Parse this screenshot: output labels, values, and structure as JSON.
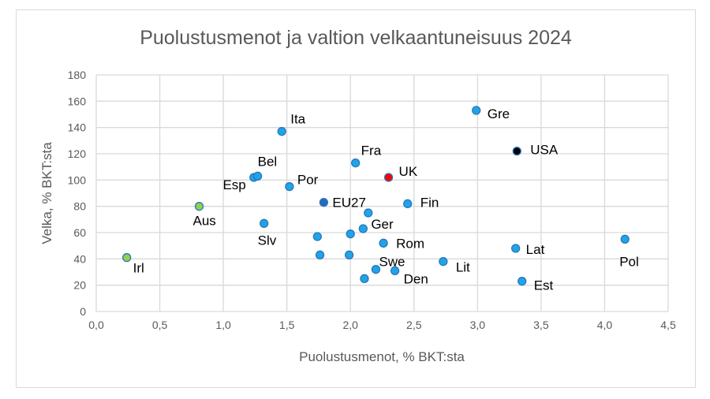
{
  "chart_data": {
    "type": "scatter",
    "title": "Puolustusmenot  ja valtion velkaantuneisuus  2024",
    "xlabel": "Puolustusmenot, % BKT:sta",
    "ylabel": "Velka, % BKT:sta",
    "xlim": [
      0,
      4.5
    ],
    "ylim": [
      0,
      180
    ],
    "xticks": [
      "0,0",
      "0,5",
      "1,0",
      "1,5",
      "2,0",
      "2,5",
      "3,0",
      "3,5",
      "4,0",
      "4,5"
    ],
    "xtick_values": [
      0,
      0.5,
      1,
      1.5,
      2,
      2.5,
      3,
      3.5,
      4,
      4.5
    ],
    "yticks": [
      "0",
      "20",
      "40",
      "60",
      "80",
      "100",
      "120",
      "140",
      "160",
      "180"
    ],
    "ytick_values": [
      0,
      20,
      40,
      60,
      80,
      100,
      120,
      140,
      160,
      180
    ],
    "grid": true,
    "colors": {
      "default": "#1ea5e9",
      "edge": "#2e75b6",
      "green": "#92d050",
      "red": "#ff0000",
      "black": "#000000",
      "eu": "#1f6cc2"
    },
    "points": [
      {
        "label": "Irl",
        "x": 0.24,
        "y": 41,
        "color": "green"
      },
      {
        "label": "Aus",
        "x": 0.81,
        "y": 80,
        "color": "green"
      },
      {
        "label": "Esp",
        "x": 1.24,
        "y": 102,
        "color": "default"
      },
      {
        "label": "Bel",
        "x": 1.27,
        "y": 103,
        "color": "default"
      },
      {
        "label": "Ita",
        "x": 1.46,
        "y": 137,
        "color": "default"
      },
      {
        "label": "Por",
        "x": 1.52,
        "y": 95,
        "color": "default"
      },
      {
        "label": "Slv",
        "x": 1.32,
        "y": 67,
        "color": "default"
      },
      {
        "label": "EU27",
        "x": 1.79,
        "y": 83,
        "color": "eu"
      },
      {
        "label": "Fra",
        "x": 2.04,
        "y": 113,
        "color": "default"
      },
      {
        "label": "UK",
        "x": 2.3,
        "y": 102,
        "color": "red"
      },
      {
        "label": "Ger",
        "x": 2.1,
        "y": 63,
        "color": "default"
      },
      {
        "label": "Fin",
        "x": 2.45,
        "y": 82,
        "color": "default"
      },
      {
        "label": "Gre",
        "x": 2.99,
        "y": 153,
        "color": "default"
      },
      {
        "label": "USA",
        "x": 3.31,
        "y": 122,
        "color": "black"
      },
      {
        "label": "Lat",
        "x": 3.3,
        "y": 48,
        "color": "default"
      },
      {
        "label": "Pol",
        "x": 4.16,
        "y": 55,
        "color": "default"
      },
      {
        "label": "Est",
        "x": 3.35,
        "y": 23,
        "color": "default"
      },
      {
        "label": "Lit",
        "x": 2.73,
        "y": 38,
        "color": "default"
      },
      {
        "label": "Rom",
        "x": 2.26,
        "y": 52,
        "color": "default"
      },
      {
        "label": "Swe",
        "x": 2.2,
        "y": 32,
        "color": "default"
      },
      {
        "label": "Den",
        "x": 2.35,
        "y": 31,
        "color": "default"
      },
      {
        "label": "",
        "x": 2.14,
        "y": 75,
        "color": "default"
      },
      {
        "label": "",
        "x": 1.74,
        "y": 57,
        "color": "default"
      },
      {
        "label": "",
        "x": 2.0,
        "y": 59,
        "color": "default"
      },
      {
        "label": "",
        "x": 1.76,
        "y": 43,
        "color": "default"
      },
      {
        "label": "",
        "x": 1.99,
        "y": 43,
        "color": "default"
      },
      {
        "label": "",
        "x": 2.11,
        "y": 25,
        "color": "default"
      }
    ]
  }
}
